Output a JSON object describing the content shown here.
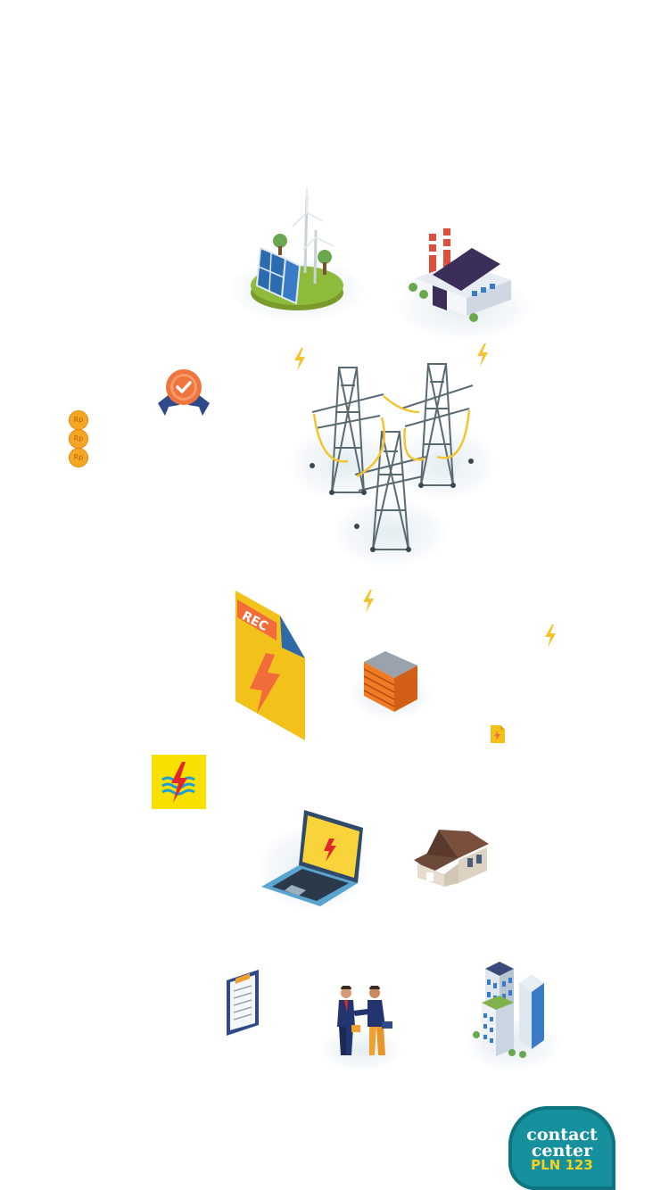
{
  "illustrations": {
    "renewable_island": "renewable-energy-island",
    "factory": "power-plant-factory",
    "towers": "transmission-towers",
    "certificate": "certificate-badge",
    "rec_document_label": "REC",
    "office_building": "office-building",
    "pln_logo": "pln-logo",
    "laptop": "laptop-with-pln-logo",
    "house": "house",
    "clipboard": "clipboard",
    "handshake": "business-handshake",
    "skyscrapers": "skyscrapers"
  },
  "coins": [
    "Rp",
    "Rp",
    "Rp"
  ],
  "contact_center": {
    "line1": "contact",
    "line2": "center",
    "line3": "PLN 123"
  },
  "colors": {
    "bolt": "#f4c430",
    "rec_yellow": "#f2c21b",
    "rec_orange": "#f26b3a",
    "contact_teal": "#16909c",
    "pln_yellow": "#f8e100",
    "badge_orange": "#f0743e",
    "tower_gray": "#5a6a72"
  }
}
